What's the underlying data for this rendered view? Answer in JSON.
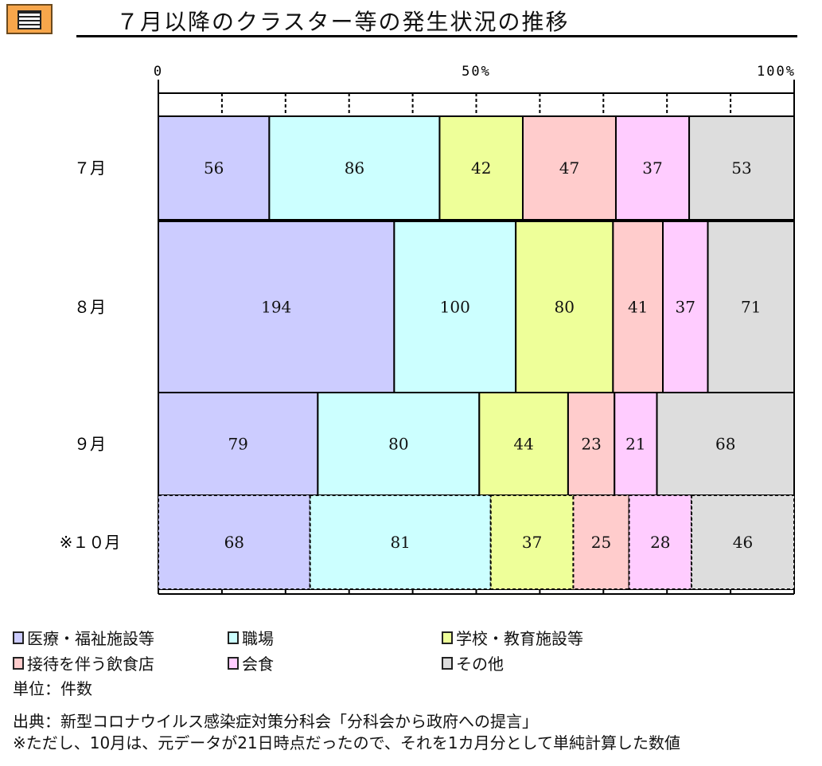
{
  "title": "７月以降のクラスター等の発生状況の推移",
  "icon": "document-icon",
  "chart_data": {
    "type": "bar",
    "orientation": "horizontal",
    "stacking": "percent",
    "scale_labels": [
      "0",
      "50%",
      "100%"
    ],
    "categories": [
      "７月",
      "８月",
      "９月",
      "※１０月"
    ],
    "series": [
      {
        "name": "医療・福祉施設等",
        "color": "#ccccff",
        "values": [
          56,
          194,
          79,
          68
        ]
      },
      {
        "name": "職場",
        "color": "#ccffff",
        "values": [
          86,
          100,
          80,
          81
        ]
      },
      {
        "name": "学校・教育施設等",
        "color": "#eeff99",
        "values": [
          42,
          80,
          44,
          37
        ]
      },
      {
        "name": "接待を伴う飲食店",
        "color": "#ffcccc",
        "values": [
          47,
          41,
          23,
          25
        ]
      },
      {
        "name": "会食",
        "color": "#ffccff",
        "values": [
          37,
          37,
          21,
          28
        ]
      },
      {
        "name": "その他",
        "color": "#dddddd",
        "values": [
          53,
          71,
          68,
          46
        ]
      }
    ],
    "estimated_row": "※１０月",
    "xlim": [
      0,
      100
    ],
    "grid": true,
    "legend": "bottom"
  },
  "notes": {
    "unit": "単位：件数",
    "source": "出典：新型コロナウイルス感染症対策分科会「分科会から政府への提言」",
    "footnote": "※ただし、10月は、元データが21日時点だったので、それを1カ月分として単純計算した数値"
  }
}
